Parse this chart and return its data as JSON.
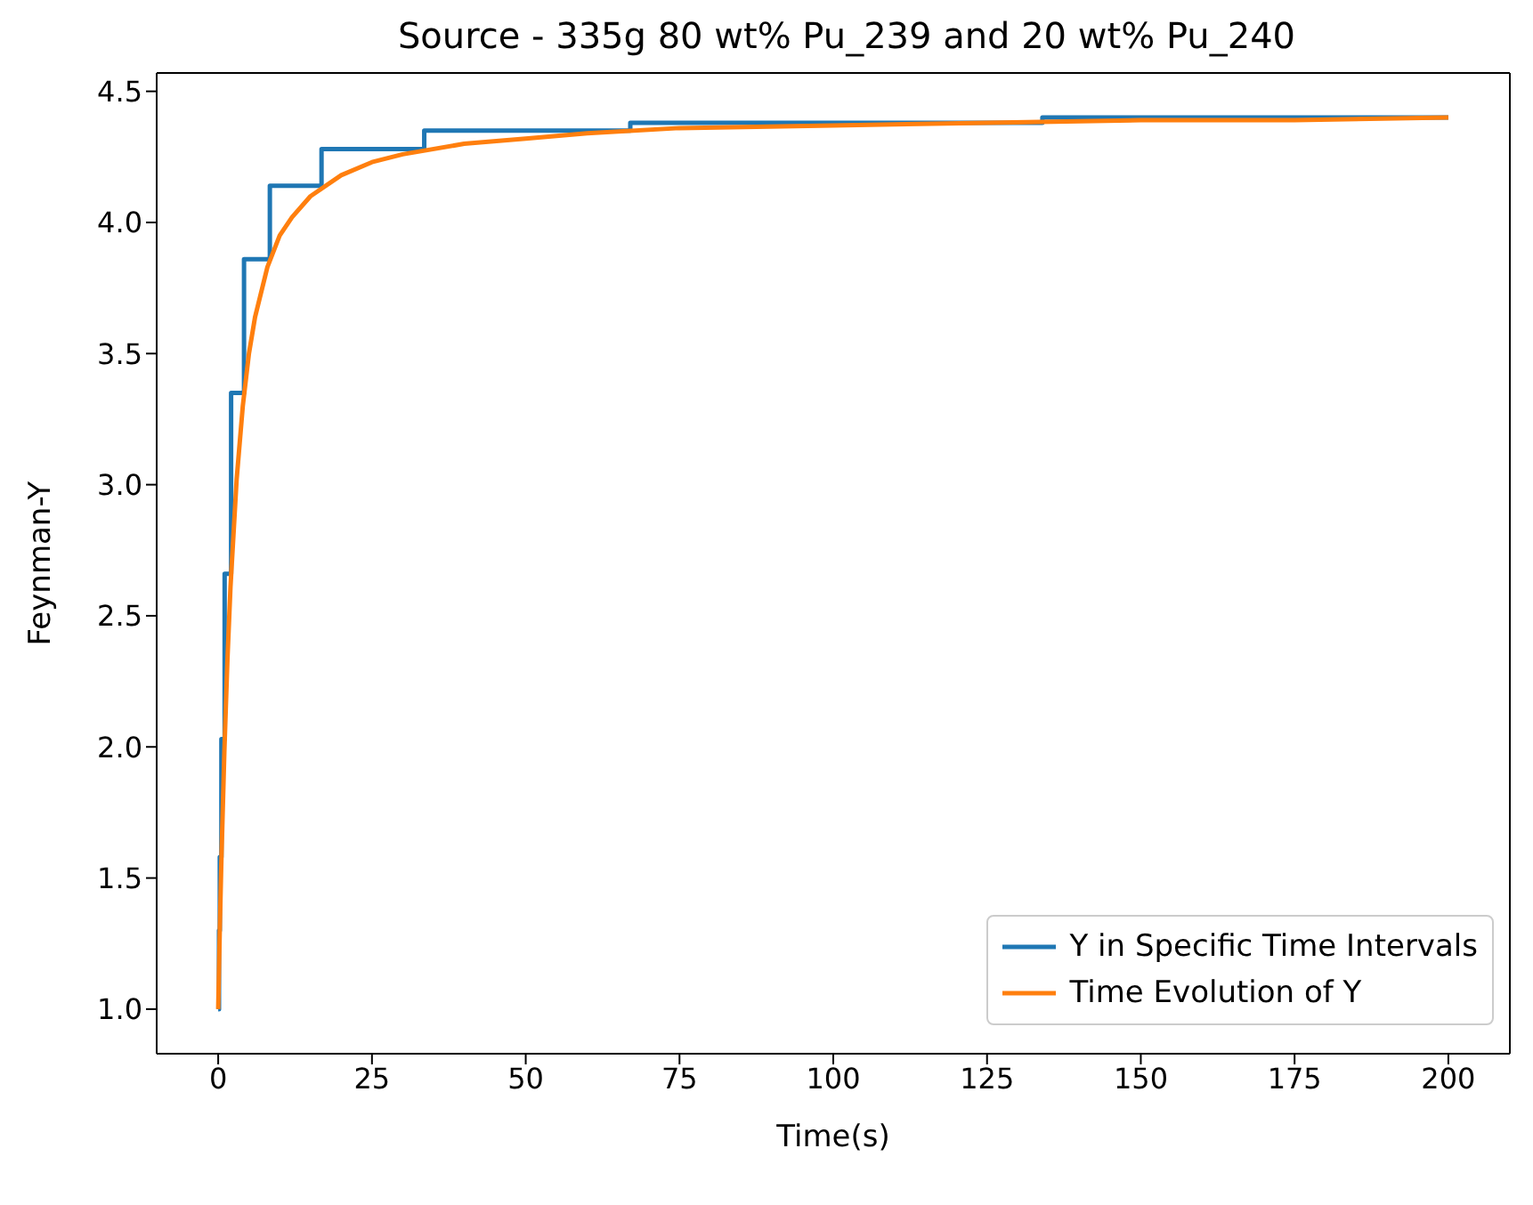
{
  "chart_data": {
    "type": "line",
    "title": "Source - 335g 80 wt% Pu_239 and 20 wt% Pu_240",
    "xlabel": "Time(s)",
    "ylabel": "Feynman-Y",
    "xlim": [
      -10,
      210
    ],
    "xticks": [
      0,
      25,
      50,
      75,
      100,
      125,
      150,
      175,
      200
    ],
    "ylim": [
      0.83,
      4.57
    ],
    "yticks": [
      {
        "value": 1,
        "label": "1.0"
      },
      {
        "value": 1.5,
        "label": "1.5"
      },
      {
        "value": 2,
        "label": "2.0"
      },
      {
        "value": 2.5,
        "label": "2.5"
      },
      {
        "value": 3,
        "label": "3.0"
      },
      {
        "value": 3.5,
        "label": "3.5"
      },
      {
        "value": 4,
        "label": "4.0"
      },
      {
        "value": 4.5,
        "label": "4.5"
      }
    ],
    "grid": false,
    "legend": "bottom right",
    "marker": "none",
    "line_style": "solid",
    "series": [
      {
        "name": "Y in Specific Time Intervals",
        "type": "step",
        "color": "#1f77b4",
        "x": [
          0,
          0.13,
          0.26,
          0.52,
          1.05,
          2.1,
          4.2,
          8.4,
          16.8,
          33.5,
          67,
          134,
          200
        ],
        "values": [
          1.0,
          1.3,
          1.58,
          2.03,
          2.66,
          3.35,
          3.86,
          4.14,
          4.28,
          4.35,
          4.38,
          4.4,
          4.4
        ]
      },
      {
        "name": "Time Evolution of Y",
        "type": "line",
        "color": "#ff7f0e",
        "x": [
          0,
          0.25,
          0.5,
          1,
          1.5,
          2,
          3,
          4,
          5,
          6,
          8,
          10,
          12,
          15,
          20,
          25,
          30,
          40,
          50,
          60,
          75,
          100,
          125,
          150,
          175,
          200
        ],
        "values": [
          1.0,
          1.29,
          1.55,
          1.98,
          2.33,
          2.61,
          3.02,
          3.3,
          3.5,
          3.64,
          3.83,
          3.95,
          4.02,
          4.1,
          4.18,
          4.23,
          4.26,
          4.3,
          4.32,
          4.34,
          4.36,
          4.37,
          4.38,
          4.39,
          4.39,
          4.4
        ]
      }
    ]
  }
}
